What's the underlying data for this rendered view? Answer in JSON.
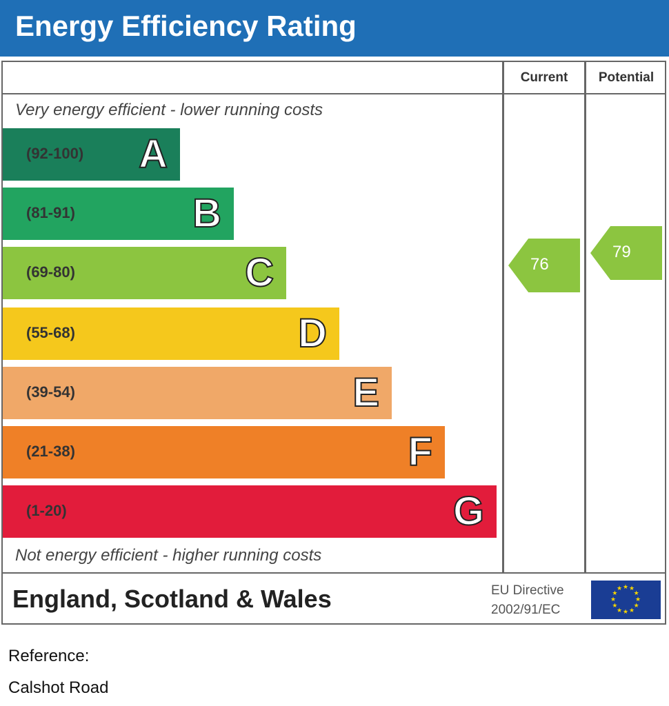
{
  "title": "Energy Efficiency Rating",
  "columns": {
    "current": "Current",
    "potential": "Potential"
  },
  "top_note": "Very energy efficient - lower running costs",
  "bottom_note": "Not energy efficient - higher running costs",
  "bands": [
    {
      "range": "(92-100)",
      "letter": "A",
      "color": "#1a7f5a"
    },
    {
      "range": "(81-91)",
      "letter": "B",
      "color": "#22a460"
    },
    {
      "range": "(69-80)",
      "letter": "C",
      "color": "#8cc540"
    },
    {
      "range": "(55-68)",
      "letter": "D",
      "color": "#f5c81c"
    },
    {
      "range": "(39-54)",
      "letter": "E",
      "color": "#f0a868"
    },
    {
      "range": "(21-38)",
      "letter": "F",
      "color": "#ef8027"
    },
    {
      "range": "(1-20)",
      "letter": "G",
      "color": "#e21c3b"
    }
  ],
  "current": {
    "value": "76",
    "band": "C",
    "color": "#8cc540"
  },
  "potential": {
    "value": "79",
    "band": "C",
    "color": "#8cc540"
  },
  "footer": {
    "region": "England, Scotland & Wales",
    "directive_line1": "EU Directive",
    "directive_line2": "2002/91/EC",
    "flag": "eu-flag-icon"
  },
  "reference": {
    "label": "Reference:",
    "value": "Calshot Road"
  }
}
